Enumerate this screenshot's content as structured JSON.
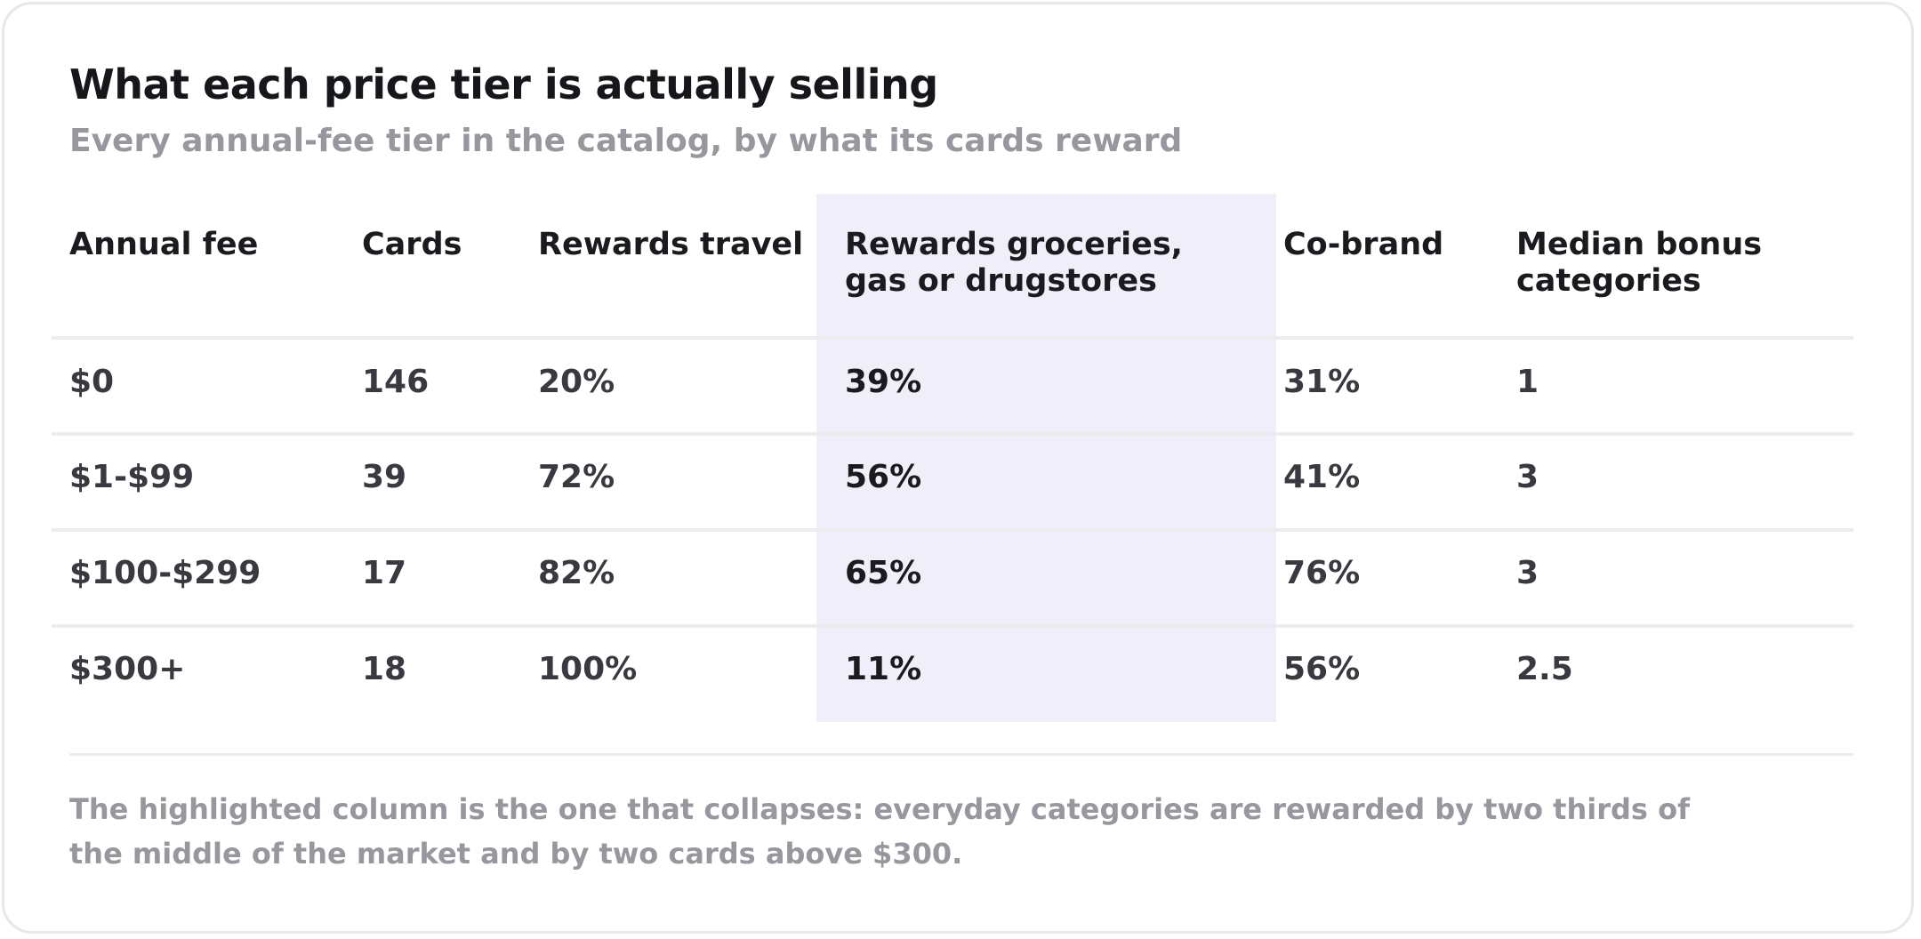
{
  "title": "What each price tier is actually selling",
  "subtitle": "Every annual-fee tier in the catalog, by what its cards reward",
  "chart_data": {
    "type": "table",
    "columns": [
      "Annual fee",
      "Cards",
      "Rewards travel",
      "Rewards groceries, gas or drugstores",
      "Co-brand",
      "Median bonus categories"
    ],
    "highlighted_column": "Rewards groceries, gas or drugstores",
    "rows": [
      {
        "fee": "$0",
        "cards": "146",
        "travel": "20%",
        "everyday": "39%",
        "cobrand": "31%",
        "median": "1"
      },
      {
        "fee": "$1-$99",
        "cards": "39",
        "travel": "72%",
        "everyday": "56%",
        "cobrand": "41%",
        "median": "3"
      },
      {
        "fee": "$100-$299",
        "cards": "17",
        "travel": "82%",
        "everyday": "65%",
        "cobrand": "76%",
        "median": "3"
      },
      {
        "fee": "$300+",
        "cards": "18",
        "travel": "100%",
        "everyday": "11%",
        "cobrand": "56%",
        "median": "2.5"
      }
    ]
  },
  "note": "The highlighted column is the one that collapses: everyday categories are rewarded by two thirds of the middle of the market and by two cards above $300.",
  "colors": {
    "highlight_fill": "#f0eef9",
    "title_text": "#17171b",
    "muted_text": "#98979e",
    "rule_line": "#ececee"
  }
}
